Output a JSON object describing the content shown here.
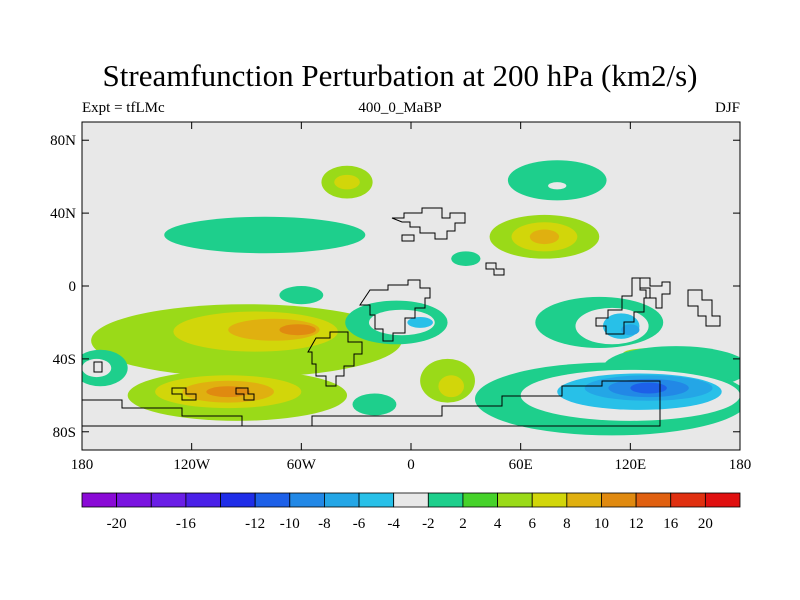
{
  "title": "Streamfunction Perturbation at 200 hPa (km2/s)",
  "left_string": "Expt = tfLMc",
  "center_string": "400_0_MaBP",
  "right_string": "DJF",
  "chart_data": {
    "type": "heatmap",
    "title": "Streamfunction Perturbation at 200 hPa (km2/s)",
    "subtitle_left": "Expt = tfLMc",
    "subtitle_center": "400_0_MaBP",
    "subtitle_right": "DJF",
    "xlim": [
      -180,
      180
    ],
    "ylim": [
      -90,
      90
    ],
    "x_ticks": [
      {
        "value": -180,
        "label": "180"
      },
      {
        "value": -120,
        "label": "120W"
      },
      {
        "value": -60,
        "label": "60W"
      },
      {
        "value": 0,
        "label": "0"
      },
      {
        "value": 60,
        "label": "60E"
      },
      {
        "value": 120,
        "label": "120E"
      },
      {
        "value": 180,
        "label": "180"
      }
    ],
    "y_ticks": [
      {
        "value": 80,
        "label": "80N"
      },
      {
        "value": 40,
        "label": "40N"
      },
      {
        "value": 0,
        "label": "0"
      },
      {
        "value": -40,
        "label": "40S"
      },
      {
        "value": -80,
        "label": "80S"
      }
    ],
    "colorbar": {
      "levels": [
        -20,
        -18,
        -16,
        -14,
        -12,
        -10,
        -8,
        -6,
        -4,
        -2,
        2,
        4,
        6,
        8,
        10,
        12,
        16,
        20
      ],
      "labels": [
        "-20",
        "-16",
        "-12",
        "-10",
        "-8",
        "-6",
        "-4",
        "-2",
        "2",
        "4",
        "6",
        "8",
        "10",
        "12",
        "16",
        "20"
      ],
      "colors": [
        "#8a0ad6",
        "#7a14e0",
        "#6a1ee6",
        "#4a20e8",
        "#1f2de8",
        "#1d60e8",
        "#2288e6",
        "#24a6e6",
        "#28c0e8",
        "#e8e8e8",
        "#1ecf8c",
        "#46d22a",
        "#9ada18",
        "#d2d60a",
        "#e0b010",
        "#e08a10",
        "#e06010",
        "#e03010",
        "#e01010"
      ]
    },
    "features": [
      {
        "kind": "positive",
        "level": 4,
        "lon": -35,
        "lat": 57,
        "rx": 14,
        "ry": 9
      },
      {
        "kind": "positive",
        "level": 6,
        "lon": -35,
        "lat": 57,
        "rx": 7,
        "ry": 4
      },
      {
        "kind": "negative",
        "level": -2,
        "lon": 80,
        "lat": 58,
        "rx": 27,
        "ry": 11
      },
      {
        "kind": "negative",
        "level": -4,
        "lon": 80,
        "lat": 55,
        "rx": 5,
        "ry": 2
      },
      {
        "kind": "negative",
        "level": -2,
        "lon": -80,
        "lat": 28,
        "rx": 55,
        "ry": 10
      },
      {
        "kind": "positive",
        "level": 4,
        "lon": 73,
        "lat": 27,
        "rx": 30,
        "ry": 12
      },
      {
        "kind": "positive",
        "level": 6,
        "lon": 73,
        "lat": 27,
        "rx": 18,
        "ry": 8
      },
      {
        "kind": "positive",
        "level": 8,
        "lon": 73,
        "lat": 27,
        "rx": 8,
        "ry": 4
      },
      {
        "kind": "negative",
        "level": -2,
        "lon": 30,
        "lat": 15,
        "rx": 8,
        "ry": 4
      },
      {
        "kind": "positive",
        "level": 4,
        "lon": -90,
        "lat": -30,
        "rx": 85,
        "ry": 20
      },
      {
        "kind": "positive",
        "level": 6,
        "lon": -85,
        "lat": -25,
        "rx": 45,
        "ry": 11
      },
      {
        "kind": "positive",
        "level": 8,
        "lon": -75,
        "lat": -24,
        "rx": 25,
        "ry": 6
      },
      {
        "kind": "positive",
        "level": 10,
        "lon": -62,
        "lat": -24,
        "rx": 10,
        "ry": 3
      },
      {
        "kind": "positive",
        "level": 4,
        "lon": -95,
        "lat": -60,
        "rx": 60,
        "ry": 14
      },
      {
        "kind": "positive",
        "level": 6,
        "lon": -100,
        "lat": -58,
        "rx": 40,
        "ry": 9
      },
      {
        "kind": "positive",
        "level": 8,
        "lon": -100,
        "lat": -58,
        "rx": 25,
        "ry": 6
      },
      {
        "kind": "positive",
        "level": 10,
        "lon": -100,
        "lat": -58,
        "rx": 12,
        "ry": 3
      },
      {
        "kind": "negative",
        "level": -2,
        "lon": -8,
        "lat": -20,
        "rx": 28,
        "ry": 12
      },
      {
        "kind": "negative",
        "level": -4,
        "lon": -5,
        "lat": -20,
        "rx": 18,
        "ry": 7
      },
      {
        "kind": "negative",
        "level": -6,
        "lon": 5,
        "lat": -20,
        "rx": 7,
        "ry": 3
      },
      {
        "kind": "negative",
        "level": -2,
        "lon": 103,
        "lat": -20,
        "rx": 35,
        "ry": 14
      },
      {
        "kind": "negative",
        "level": -4,
        "lon": 110,
        "lat": -22,
        "rx": 20,
        "ry": 10
      },
      {
        "kind": "negative",
        "level": -6,
        "lon": 115,
        "lat": -22,
        "rx": 10,
        "ry": 7
      },
      {
        "kind": "negative",
        "level": -8,
        "lon": 120,
        "lat": -24,
        "rx": 5,
        "ry": 3
      },
      {
        "kind": "positive",
        "level": 4,
        "lon": 133,
        "lat": -37,
        "rx": 17,
        "ry": 3
      },
      {
        "kind": "negative",
        "level": -2,
        "lon": 145,
        "lat": -45,
        "rx": 40,
        "ry": 12
      },
      {
        "kind": "negative",
        "level": -2,
        "lon": 110,
        "lat": -62,
        "rx": 75,
        "ry": 20
      },
      {
        "kind": "negative",
        "level": -4,
        "lon": 120,
        "lat": -60,
        "rx": 60,
        "ry": 14
      },
      {
        "kind": "negative",
        "level": -6,
        "lon": 125,
        "lat": -58,
        "rx": 45,
        "ry": 10
      },
      {
        "kind": "negative",
        "level": -8,
        "lon": 130,
        "lat": -56,
        "rx": 35,
        "ry": 7
      },
      {
        "kind": "negative",
        "level": -10,
        "lon": 130,
        "lat": -56,
        "rx": 22,
        "ry": 5
      },
      {
        "kind": "negative",
        "level": -12,
        "lon": 130,
        "lat": -56,
        "rx": 10,
        "ry": 3
      },
      {
        "kind": "negative",
        "level": -2,
        "lon": -170,
        "lat": -45,
        "rx": 15,
        "ry": 10
      },
      {
        "kind": "negative",
        "level": -4,
        "lon": -172,
        "lat": -45,
        "rx": 8,
        "ry": 5
      },
      {
        "kind": "negative",
        "level": -2,
        "lon": -60,
        "lat": -5,
        "rx": 12,
        "ry": 5
      },
      {
        "kind": "negative",
        "level": -2,
        "lon": -20,
        "lat": -65,
        "rx": 12,
        "ry": 6
      },
      {
        "kind": "positive",
        "level": 4,
        "lon": 20,
        "lat": -52,
        "rx": 15,
        "ry": 12
      },
      {
        "kind": "positive",
        "level": 6,
        "lon": 22,
        "lat": -55,
        "rx": 7,
        "ry": 6
      }
    ]
  }
}
